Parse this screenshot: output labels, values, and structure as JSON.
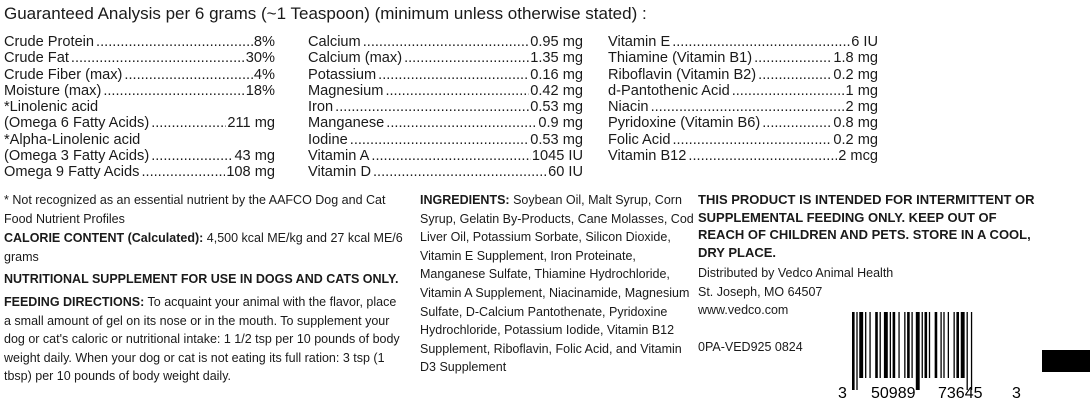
{
  "title": "Guaranteed Analysis per 6 grams (~1 Teaspoon) (minimum unless otherwise stated) :",
  "col1": [
    {
      "label": "Crude Protein",
      "value": "8%"
    },
    {
      "label": "Crude Fat",
      "value": "30%"
    },
    {
      "label": "Crude Fiber (max)",
      "value": "4%"
    },
    {
      "label": "Moisture (max)",
      "value": "18%"
    },
    {
      "label": "*Linolenic acid",
      "value": ""
    },
    {
      "label": "(Omega 6 Fatty Acids)",
      "value": "211 mg"
    },
    {
      "label": "*Alpha-Linolenic acid",
      "value": ""
    },
    {
      "label": "(Omega 3 Fatty Acids)",
      "value": "43 mg"
    },
    {
      "label": "Omega 9 Fatty Acids",
      "value": "108 mg"
    }
  ],
  "col2": [
    {
      "label": "Calcium",
      "value": "0.95 mg"
    },
    {
      "label": "Calcium (max)",
      "value": "1.35 mg"
    },
    {
      "label": "Potassium",
      "value": "0.16 mg"
    },
    {
      "label": "Magnesium",
      "value": "0.42 mg"
    },
    {
      "label": "Iron",
      "value": "0.53 mg"
    },
    {
      "label": "Manganese",
      "value": "0.9 mg"
    },
    {
      "label": "Iodine",
      "value": "0.53 mg"
    },
    {
      "label": "Vitamin A",
      "value": "1045 IU"
    },
    {
      "label": "Vitamin D",
      "value": "60 IU"
    }
  ],
  "col3": [
    {
      "label": "Vitamin E",
      "value": "6 IU"
    },
    {
      "label": "Thiamine (Vitamin B1)",
      "value": "1.8 mg"
    },
    {
      "label": "Riboflavin (Vitamin B2)",
      "value": "0.2 mg"
    },
    {
      "label": "d-Pantothenic Acid",
      "value": "1 mg"
    },
    {
      "label": "Niacin",
      "value": "2 mg"
    },
    {
      "label": "Pyridoxine (Vitamin B6)",
      "value": "0.8 mg"
    },
    {
      "label": "Folic Acid",
      "value": "0.2 mg"
    },
    {
      "label": "Vitamin B12",
      "value": "2 mcg"
    }
  ],
  "footnote": "* Not recognized as an essential nutrient by the AAFCO Dog and Cat Food Nutrient Profiles",
  "calorie_heading": "CALORIE CONTENT (Calculated):",
  "calorie_text": "4,500 kcal ME/kg and 27 kcal ME/6 grams",
  "supplement_statement": "NUTRITIONAL SUPPLEMENT FOR USE IN DOGS AND CATS ONLY.",
  "feeding_heading": "FEEDING DIRECTIONS:",
  "feeding_text": "To acquaint your animal with the flavor, place a small amount of gel on its nose or in the mouth. To supplement your dog or cat's caloric or nutritional intake: 1 1/2 tsp per 10 pounds of body weight daily. When your dog or cat is not eating its full ration: 3 tsp (1 tbsp) per 10 pounds of body weight daily.",
  "ingredients_heading": "INGREDIENTS:",
  "ingredients_text": "Soybean Oil, Malt Syrup, Corn Syrup, Gelatin By-Products, Cane Molasses, Cod Liver Oil, Potassium Sorbate, Silicon Dioxide, Vitamin E Supplement, Iron Proteinate, Manganese Sulfate, Thiamine Hydrochloride, Vitamin A Supplement, Niacinamide, Magnesium Sulfate, D-Calcium Pantothenate, Pyridoxine Hydrochloride, Potassium Iodide, Vitamin B12 Supplement, Riboflavin, Folic Acid, and Vitamin D3 Supplement",
  "warning": "THIS PRODUCT IS INTENDED FOR INTERMITTENT OR SUPPLEMENTAL FEEDING ONLY. KEEP OUT OF REACH OF CHILDREN AND PETS. STORE IN A COOL, DRY PLACE.",
  "distributor": [
    "Distributed by Vedco Animal Health",
    "St. Joseph, MO 64507",
    "www.vedco.com"
  ],
  "lot_code": "0PA-VED925 0824",
  "barcode": {
    "digits": [
      "3",
      "50989",
      "73645",
      "3"
    ]
  }
}
